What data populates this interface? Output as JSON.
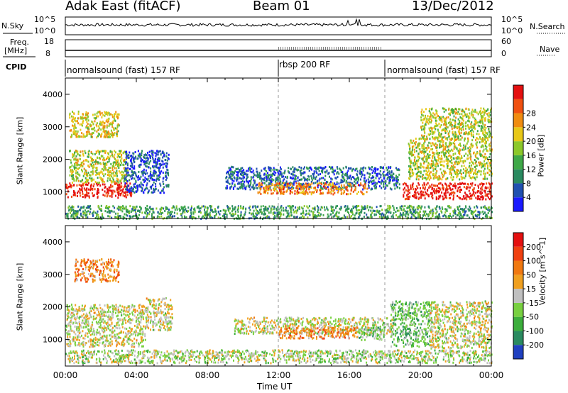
{
  "header": {
    "title": "Adak East (fitACF)",
    "beam": "Beam 01",
    "date": "13/Dec/2012"
  },
  "top_panels": {
    "nsky_label": "N.Sky",
    "nsky_ticks": [
      "10^5",
      "10^0"
    ],
    "nsearch_label": "N.Search",
    "nsearch_ticks": [
      "10^5",
      "10^0"
    ],
    "freq_label_1": "Freq.",
    "freq_label_2": "[MHz]",
    "freq_ticks": [
      "18",
      "8"
    ],
    "nave_label": "Nave",
    "nave_ticks": [
      "60",
      "0"
    ],
    "cpid_label": "CPID",
    "cpid_segments": [
      {
        "label": "normalsound (fast) 157 RF",
        "start_h": 0,
        "end_h": 12
      },
      {
        "label": "rbsp 200 RF",
        "start_h": 12,
        "end_h": 18
      },
      {
        "label": "normalsound (fast) 157 RF",
        "start_h": 18,
        "end_h": 24
      }
    ]
  },
  "chart_data": [
    {
      "type": "heatmap",
      "name": "power-panel",
      "ylabel": "Slant Range [km]",
      "xlabel": "",
      "ylim": [
        180,
        4500
      ],
      "xlim": [
        0,
        24
      ],
      "y_ticks": [
        "1000",
        "2000",
        "3000",
        "4000"
      ],
      "y_tick_values": [
        1000,
        2000,
        3000,
        4000
      ],
      "colorbar_label": "Power [dB]",
      "colorbar_ticks": [
        "4",
        "8",
        "12",
        "16",
        "20",
        "24",
        "28"
      ],
      "colorbar_colors": [
        "#1a1aff",
        "#2050b0",
        "#2a8a60",
        "#3fa848",
        "#8cc82a",
        "#e8c818",
        "#f08c10",
        "#f05010",
        "#e41010"
      ],
      "regions": [
        {
          "h0": 0.0,
          "h1": 3.7,
          "r0": 850,
          "r1": 1300,
          "level": 0.95
        },
        {
          "h0": 0.2,
          "h1": 3.5,
          "r0": 1300,
          "r1": 2300,
          "level": 0.55
        },
        {
          "h0": 0.2,
          "h1": 3.0,
          "r0": 2700,
          "r1": 3500,
          "level": 0.6
        },
        {
          "h0": 3.3,
          "h1": 5.8,
          "r0": 1000,
          "r1": 2300,
          "level": 0.15
        },
        {
          "h0": 9.0,
          "h1": 18.8,
          "r0": 1100,
          "r1": 1800,
          "level": 0.2
        },
        {
          "h0": 10.8,
          "h1": 17.0,
          "r0": 950,
          "r1": 1300,
          "level": 0.75
        },
        {
          "h0": 19.0,
          "h1": 24.0,
          "r0": 800,
          "r1": 1300,
          "level": 0.95
        },
        {
          "h0": 19.3,
          "h1": 24.0,
          "r0": 1400,
          "r1": 2700,
          "level": 0.55
        },
        {
          "h0": 20.0,
          "h1": 24.0,
          "r0": 2700,
          "r1": 3600,
          "level": 0.55
        },
        {
          "h0": 0.0,
          "h1": 24.0,
          "r0": 200,
          "r1": 600,
          "level": 0.35
        }
      ]
    },
    {
      "type": "heatmap",
      "name": "velocity-panel",
      "ylabel": "Slant Range [km]",
      "xlabel": "Time UT",
      "ylim": [
        180,
        4500
      ],
      "xlim": [
        0,
        24
      ],
      "y_ticks": [
        "1000",
        "2000",
        "3000",
        "4000"
      ],
      "y_tick_values": [
        1000,
        2000,
        3000,
        4000
      ],
      "x_ticks": [
        "00:00",
        "04:00",
        "08:00",
        "12:00",
        "16:00",
        "20:00",
        "00:00"
      ],
      "x_tick_values": [
        0,
        4,
        8,
        12,
        16,
        20,
        24
      ],
      "colorbar_label": "Velocity [m s^-1]",
      "colorbar_ticks": [
        "200",
        "100",
        "50",
        "15",
        "-15",
        "-50",
        "-100",
        "-200"
      ],
      "colorbar_colors": [
        "#2040c0",
        "#2a8a60",
        "#3cae3c",
        "#78d040",
        "#c0c0c0",
        "#f0a020",
        "#f07810",
        "#f04010",
        "#e41010"
      ],
      "regions": [
        {
          "h0": 0.0,
          "h1": 4.5,
          "r0": 800,
          "r1": 2100,
          "level": 0.5
        },
        {
          "h0": 4.5,
          "h1": 6.0,
          "r0": 1300,
          "r1": 2300,
          "level": 0.5
        },
        {
          "h0": 0.5,
          "h1": 3.0,
          "r0": 2800,
          "r1": 3500,
          "level": 0.7
        },
        {
          "h0": 9.5,
          "h1": 18.5,
          "r0": 1200,
          "r1": 1700,
          "level": 0.5
        },
        {
          "h0": 12.0,
          "h1": 16.5,
          "r0": 1050,
          "r1": 1400,
          "level": 0.68
        },
        {
          "h0": 16.5,
          "h1": 18.0,
          "r0": 1000,
          "r1": 1400,
          "level": 0.38
        },
        {
          "h0": 18.3,
          "h1": 20.5,
          "r0": 800,
          "r1": 2200,
          "level": 0.35
        },
        {
          "h0": 20.5,
          "h1": 24.0,
          "r0": 750,
          "r1": 2200,
          "level": 0.5
        },
        {
          "h0": 0.0,
          "h1": 24.0,
          "r0": 300,
          "r1": 700,
          "level": 0.45
        }
      ]
    }
  ]
}
